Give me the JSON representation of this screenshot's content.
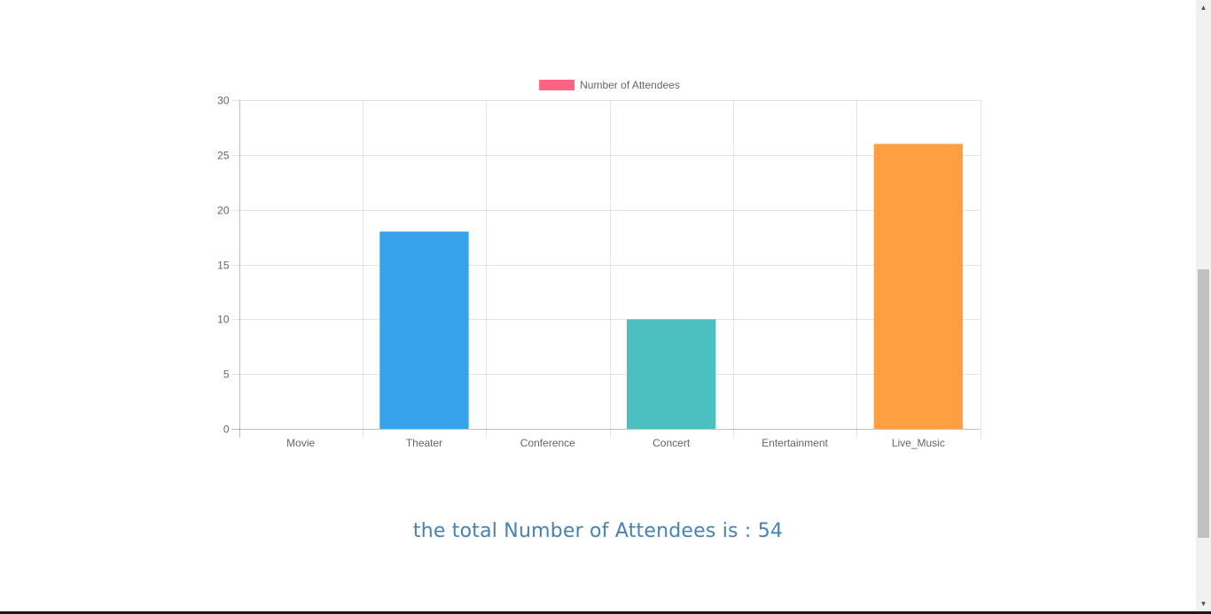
{
  "chart_data": {
    "type": "bar",
    "categories": [
      "Movie",
      "Theater",
      "Conference",
      "Concert",
      "Entertainment",
      "Live_Music"
    ],
    "series": [
      {
        "name": "Number of Attendees",
        "values": [
          0,
          18,
          0,
          10,
          0,
          26
        ],
        "colors": [
          "#ff6384",
          "#36a2eb",
          "#ffcd56",
          "#4bc0c0",
          "#9966ff",
          "#ff9f40"
        ]
      }
    ],
    "legend_color": "#ff6384",
    "legend_position": "top",
    "ylim": [
      0,
      30
    ],
    "yticks": [
      "0",
      "5",
      "10",
      "15",
      "20",
      "25",
      "30"
    ],
    "grid": true
  },
  "summary": {
    "total_text": "the total Number of Attendees is : 54"
  },
  "scrollbar": {
    "up_arrow": "▲",
    "down_arrow": "▼"
  }
}
